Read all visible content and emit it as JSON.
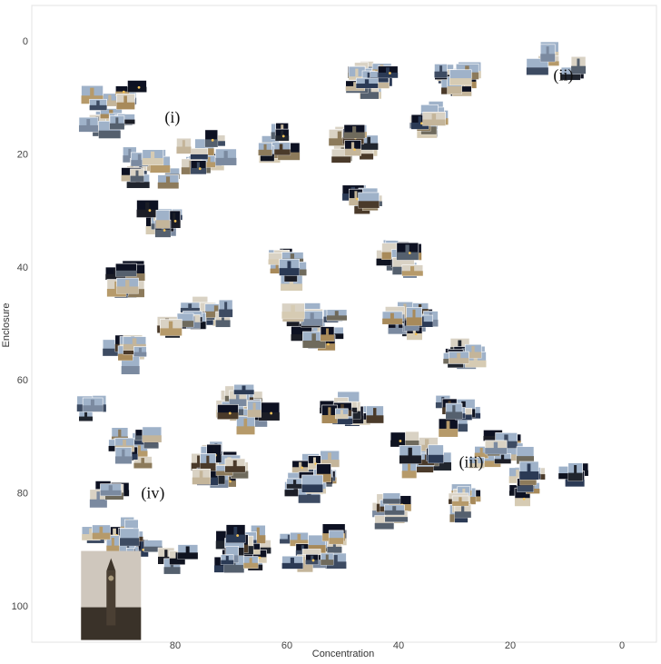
{
  "chart_data": {
    "type": "scatter",
    "title": "",
    "xlabel": "Concentration",
    "ylabel": "Enclosure",
    "xlim": [
      98,
      -6
    ],
    "ylim": [
      107,
      -6
    ],
    "x_ticks": [
      80,
      60,
      40,
      20,
      0
    ],
    "y_ticks": [
      0,
      20,
      40,
      60,
      80,
      100
    ],
    "x_inverted": true,
    "y_inverted": true,
    "grid": false,
    "marker": "photo-thumbnail",
    "annotations": [
      {
        "label": "(i)",
        "x": 80.5,
        "y": 13.5
      },
      {
        "label": "(ii)",
        "x": 10.5,
        "y": 6
      },
      {
        "label": "(iii)",
        "x": 27,
        "y": 74.5
      },
      {
        "label": "(iv)",
        "x": 84,
        "y": 80
      }
    ],
    "reference_image": {
      "name": "big-ben-reference",
      "x": 91.5,
      "y": 98
    }
  }
}
